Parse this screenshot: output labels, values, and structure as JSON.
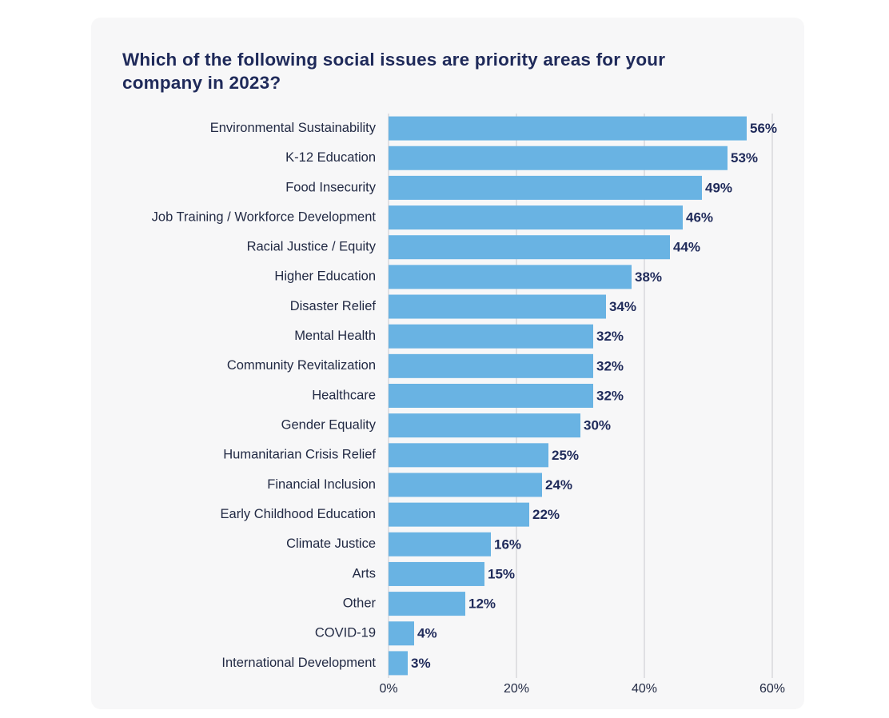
{
  "chart_data": {
    "type": "bar",
    "title": "Which of the following social issues are priority areas for your company in 2023?",
    "categories": [
      "Environmental Sustainability",
      "K-12 Education",
      "Food Insecurity",
      "Job Training / Workforce Development",
      "Racial Justice / Equity",
      "Higher Education",
      "Disaster Relief",
      "Mental Health",
      "Community Revitalization",
      "Healthcare",
      "Gender Equality",
      "Humanitarian Crisis Relief",
      "Financial Inclusion",
      "Early Childhood Education",
      "Climate Justice",
      "Arts",
      "Other",
      "COVID-19",
      "International Development"
    ],
    "values": [
      56,
      53,
      49,
      46,
      44,
      38,
      34,
      32,
      32,
      32,
      30,
      25,
      24,
      22,
      16,
      15,
      12,
      4,
      3
    ],
    "value_labels": [
      "56%",
      "53%",
      "49%",
      "46%",
      "44%",
      "38%",
      "34%",
      "32%",
      "32%",
      "32%",
      "30%",
      "25%",
      "24%",
      "22%",
      "16%",
      "15%",
      "12%",
      "4%",
      "3%"
    ],
    "color": "#69b3e3",
    "xlim": [
      0,
      60
    ],
    "xticks": [
      {
        "value": 0,
        "label": "0%"
      },
      {
        "value": 20,
        "label": "20%"
      },
      {
        "value": 40,
        "label": "40%"
      },
      {
        "value": 60,
        "label": "60%"
      }
    ],
    "grid": true
  }
}
